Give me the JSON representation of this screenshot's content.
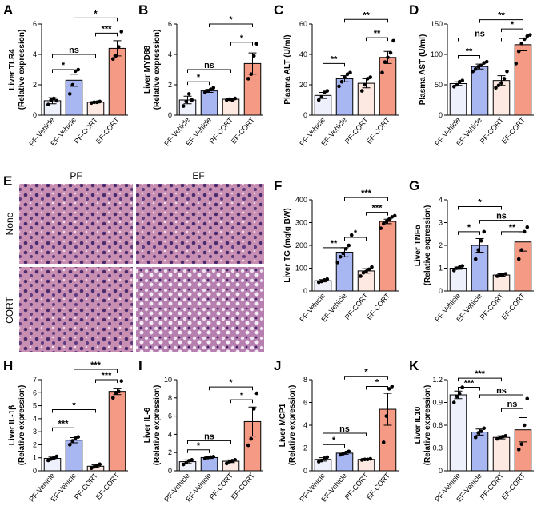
{
  "histology": {
    "label": "E",
    "columns": [
      "PF",
      "EF"
    ],
    "rows": [
      "None",
      "CORT"
    ]
  },
  "chart_data": [
    {
      "type": "bar",
      "label": "A",
      "ylabel": [
        "Liver TLR4",
        "(Relative expression)"
      ],
      "categories": [
        "PF-Vehicle",
        "EF-Vehicle",
        "PF-CORT",
        "EF-CORT"
      ],
      "colors": [
        "#eef0fb",
        "#a8b6f2",
        "#fde8e2",
        "#f59a84"
      ],
      "values": [
        0.95,
        2.3,
        0.85,
        4.4
      ],
      "errors": [
        0.2,
        0.4,
        0.05,
        0.5
      ],
      "points": [
        [
          0.7,
          1.0,
          1.1,
          0.95
        ],
        [
          1.4,
          2.0,
          2.9,
          3.0
        ],
        [
          0.8,
          0.85,
          0.85,
          0.9
        ],
        [
          3.7,
          3.9,
          4.5,
          5.5
        ]
      ],
      "ylim": [
        0,
        6
      ],
      "yticks": [
        0,
        2,
        4,
        6
      ],
      "brackets": [
        {
          "from": 0,
          "to": 1,
          "y": 3.0,
          "label": "*"
        },
        {
          "from": 0,
          "to": 2,
          "y": 4.0,
          "label": "ns"
        },
        {
          "from": 1,
          "to": 3,
          "y": 6.4,
          "label": "*"
        },
        {
          "from": 2,
          "to": 3,
          "y": 5.4,
          "label": "***"
        }
      ]
    },
    {
      "type": "bar",
      "label": "B",
      "ylabel": [
        "Liver MYD88",
        "(Relative expression)"
      ],
      "categories": [
        "PF-Vehicle",
        "EF-Vehicle",
        "PF-CORT",
        "EF-CORT"
      ],
      "colors": [
        "#eef0fb",
        "#a8b6f2",
        "#fde8e2",
        "#f59a84"
      ],
      "values": [
        1.0,
        1.6,
        1.05,
        3.4
      ],
      "errors": [
        0.25,
        0.1,
        0.05,
        0.7
      ],
      "points": [
        [
          0.6,
          0.9,
          1.4,
          1.0
        ],
        [
          1.5,
          1.6,
          1.7,
          1.8
        ],
        [
          1.0,
          1.05,
          1.0,
          1.1
        ],
        [
          2.4,
          2.7,
          3.9,
          4.7
        ]
      ],
      "ylim": [
        0,
        6
      ],
      "yticks": [
        0,
        2,
        4,
        6
      ],
      "brackets": [
        {
          "from": 0,
          "to": 1,
          "y": 2.2,
          "label": "*"
        },
        {
          "from": 0,
          "to": 2,
          "y": 3.0,
          "label": "ns"
        },
        {
          "from": 1,
          "to": 3,
          "y": 6.0,
          "label": "*"
        },
        {
          "from": 2,
          "to": 3,
          "y": 4.8,
          "label": "*"
        }
      ]
    },
    {
      "type": "bar",
      "label": "C",
      "ylabel": [
        "Plasma ALT (U/ml)"
      ],
      "categories": [
        "PF-Vehicle",
        "EF-Vehicle",
        "PF-CORT",
        "EF-CORT"
      ],
      "colors": [
        "#eef0fb",
        "#a8b6f2",
        "#fde8e2",
        "#f59a84"
      ],
      "values": [
        13,
        24,
        21,
        38
      ],
      "errors": [
        2,
        2,
        3,
        4
      ],
      "points": [
        [
          10,
          12,
          15,
          16
        ],
        [
          19,
          22,
          25,
          27,
          28
        ],
        [
          16,
          20,
          24,
          25
        ],
        [
          28,
          35,
          38,
          41,
          49
        ]
      ],
      "ylim": [
        0,
        60
      ],
      "yticks": [
        0,
        20,
        40,
        60
      ],
      "brackets": [
        {
          "from": 0,
          "to": 1,
          "y": 34,
          "label": "**"
        },
        {
          "from": 1,
          "to": 3,
          "y": 63,
          "label": "**"
        },
        {
          "from": 2,
          "to": 3,
          "y": 51,
          "label": "**"
        }
      ]
    },
    {
      "type": "bar",
      "label": "D",
      "ylabel": [
        "Plasma AST (U/ml)"
      ],
      "categories": [
        "PF-Vehicle",
        "EF-Vehicle",
        "PF-CORT",
        "EF-CORT"
      ],
      "colors": [
        "#eef0fb",
        "#a8b6f2",
        "#fde8e2",
        "#f59a84"
      ],
      "values": [
        52,
        80,
        57,
        116
      ],
      "errors": [
        3,
        4,
        8,
        10
      ],
      "points": [
        [
          47,
          50,
          55,
          57
        ],
        [
          72,
          76,
          80,
          82,
          86,
          88
        ],
        [
          45,
          49,
          53,
          60,
          72
        ],
        [
          85,
          105,
          118,
          125,
          130,
          132
        ]
      ],
      "ylim": [
        0,
        150
      ],
      "yticks": [
        0,
        50,
        100,
        150
      ],
      "brackets": [
        {
          "from": 0,
          "to": 1,
          "y": 98,
          "label": "**"
        },
        {
          "from": 0,
          "to": 2,
          "y": 127,
          "label": "ns"
        },
        {
          "from": 1,
          "to": 3,
          "y": 157,
          "label": "**"
        },
        {
          "from": 2,
          "to": 3,
          "y": 142,
          "label": "*"
        }
      ]
    },
    {
      "type": "bar",
      "label": "F",
      "ylabel": [
        "Liver TG (mg/g BW)"
      ],
      "categories": [
        "PF-Vehicle",
        "EF-Vehicle",
        "PF-CORT",
        "EF-CORT"
      ],
      "colors": [
        "#eef0fb",
        "#a8b6f2",
        "#fde8e2",
        "#f59a84"
      ],
      "values": [
        45,
        170,
        88,
        305
      ],
      "errors": [
        5,
        20,
        10,
        10
      ],
      "points": [
        [
          38,
          42,
          48,
          52
        ],
        [
          125,
          150,
          165,
          185,
          200,
          245
        ],
        [
          65,
          80,
          85,
          95,
          105
        ],
        [
          275,
          295,
          305,
          315,
          325,
          330
        ]
      ],
      "ylim": [
        0,
        400
      ],
      "yticks": [
        0,
        100,
        200,
        300,
        400
      ],
      "brackets": [
        {
          "from": 0,
          "to": 1,
          "y": 190,
          "label": "**"
        },
        {
          "from": 1,
          "to": 2,
          "y": 235,
          "label": "*"
        },
        {
          "from": 2,
          "to": 3,
          "y": 345,
          "label": "***"
        },
        {
          "from": 1,
          "to": 3,
          "y": 410,
          "label": "***"
        }
      ]
    },
    {
      "type": "bar",
      "label": "G",
      "ylabel": [
        "Liver TNFα",
        "(Relative expression)"
      ],
      "categories": [
        "PF-Vehicle",
        "EF-Vehicle",
        "PF-CORT",
        "EF-CORT"
      ],
      "colors": [
        "#eef0fb",
        "#a8b6f2",
        "#fde8e2",
        "#f59a84"
      ],
      "values": [
        1.0,
        2.0,
        0.7,
        2.15
      ],
      "errors": [
        0.05,
        0.3,
        0.05,
        0.4
      ],
      "points": [
        [
          0.9,
          1.0,
          1.05,
          1.1
        ],
        [
          1.4,
          1.8,
          2.2,
          2.6
        ],
        [
          0.65,
          0.7,
          0.72,
          0.75
        ],
        [
          1.4,
          1.8,
          2.6,
          2.8
        ]
      ],
      "ylim": [
        0,
        4
      ],
      "yticks": [
        0,
        1,
        2,
        3,
        4
      ],
      "brackets": [
        {
          "from": 0,
          "to": 1,
          "y": 2.6,
          "label": "*"
        },
        {
          "from": 0,
          "to": 2,
          "y": 3.7,
          "label": "*"
        },
        {
          "from": 1,
          "to": 3,
          "y": 3.1,
          "label": "ns"
        },
        {
          "from": 2,
          "to": 3,
          "y": 2.6,
          "label": "**"
        }
      ]
    },
    {
      "type": "bar",
      "label": "H",
      "ylabel": [
        "Liver IL-1β",
        "(Relative expression)"
      ],
      "categories": [
        "PF-Vehicle",
        "EF-Vehicle",
        "PF-CORT",
        "EF-CORT"
      ],
      "colors": [
        "#eef0fb",
        "#a8b6f2",
        "#fde8e2",
        "#f59a84"
      ],
      "values": [
        0.95,
        2.35,
        0.35,
        6.1
      ],
      "errors": [
        0.1,
        0.2,
        0.1,
        0.25
      ],
      "points": [
        [
          0.8,
          0.9,
          1.0,
          1.1
        ],
        [
          2.0,
          2.3,
          2.5,
          2.6
        ],
        [
          0.2,
          0.3,
          0.4,
          0.5
        ],
        [
          5.6,
          6.0,
          6.1,
          6.9
        ]
      ],
      "ylim": [
        0,
        7
      ],
      "yticks": [
        0,
        1,
        2,
        3,
        4,
        5,
        6,
        7
      ],
      "brackets": [
        {
          "from": 0,
          "to": 1,
          "y": 3.3,
          "label": "***"
        },
        {
          "from": 0,
          "to": 2,
          "y": 4.7,
          "label": "*"
        },
        {
          "from": 1,
          "to": 3,
          "y": 7.8,
          "label": "***"
        },
        {
          "from": 2,
          "to": 3,
          "y": 7.0,
          "label": "***"
        }
      ]
    },
    {
      "type": "bar",
      "label": "I",
      "ylabel": [
        "Liver IL-6",
        "(Relative expression)"
      ],
      "categories": [
        "PF-Vehicle",
        "EF-Vehicle",
        "PF-CORT",
        "EF-CORT"
      ],
      "colors": [
        "#eef0fb",
        "#a8b6f2",
        "#fde8e2",
        "#f59a84"
      ],
      "values": [
        1.0,
        1.45,
        1.05,
        5.4
      ],
      "errors": [
        0.2,
        0.1,
        0.15,
        1.6
      ],
      "points": [
        [
          0.7,
          0.9,
          1.1,
          1.2
        ],
        [
          1.35,
          1.45,
          1.5,
          1.55
        ],
        [
          0.8,
          1.0,
          1.1,
          1.2
        ],
        [
          2.8,
          3.5,
          6.8,
          8.5
        ]
      ],
      "ylim": [
        0,
        10
      ],
      "yticks": [
        0,
        2,
        4,
        6,
        8,
        10
      ],
      "brackets": [
        {
          "from": 0,
          "to": 1,
          "y": 2.3,
          "label": "*"
        },
        {
          "from": 0,
          "to": 2,
          "y": 3.3,
          "label": "ns"
        },
        {
          "from": 1,
          "to": 3,
          "y": 9.2,
          "label": "*"
        },
        {
          "from": 2,
          "to": 3,
          "y": 7.8,
          "label": "*"
        }
      ]
    },
    {
      "type": "bar",
      "label": "J",
      "ylabel": [
        "Liver MCP1",
        "(Relative expression)"
      ],
      "categories": [
        "PF-Vehicle",
        "EF-Vehicle",
        "PF-CORT",
        "EF-CORT"
      ],
      "colors": [
        "#eef0fb",
        "#a8b6f2",
        "#fde8e2",
        "#f59a84"
      ],
      "values": [
        1.0,
        1.55,
        1.0,
        5.4
      ],
      "errors": [
        0.15,
        0.1,
        0.05,
        1.4
      ],
      "points": [
        [
          0.8,
          0.9,
          1.1,
          1.2
        ],
        [
          1.4,
          1.5,
          1.6,
          1.7
        ],
        [
          0.95,
          1.0,
          1.0,
          1.05
        ],
        [
          2.5,
          4.8,
          7.2,
          7.4
        ]
      ],
      "ylim": [
        0,
        8
      ],
      "yticks": [
        0,
        2,
        4,
        6,
        8
      ],
      "brackets": [
        {
          "from": 0,
          "to": 1,
          "y": 2.3,
          "label": "*"
        },
        {
          "from": 0,
          "to": 2,
          "y": 3.3,
          "label": "ns"
        },
        {
          "from": 1,
          "to": 3,
          "y": 8.3,
          "label": "*"
        },
        {
          "from": 2,
          "to": 3,
          "y": 7.4,
          "label": "*"
        }
      ]
    },
    {
      "type": "bar",
      "label": "K",
      "ylabel": [
        "Liver IL10",
        "(Relative expression)"
      ],
      "categories": [
        "PF-Vehicle",
        "EF-Vehicle",
        "PF-CORT",
        "EF-CORT"
      ],
      "colors": [
        "#eef0fb",
        "#a8b6f2",
        "#fde8e2",
        "#f59a84"
      ],
      "values": [
        1.0,
        0.51,
        0.44,
        0.54
      ],
      "errors": [
        0.05,
        0.04,
        0.02,
        0.16
      ],
      "points": [
        [
          0.9,
          0.98,
          1.02,
          1.1
        ],
        [
          0.44,
          0.5,
          0.52,
          0.56
        ],
        [
          0.42,
          0.44,
          0.45,
          0.46
        ],
        [
          0.28,
          0.35,
          0.6,
          0.95
        ]
      ],
      "ylim": [
        0,
        1.2
      ],
      "yticks": [
        0,
        0.3,
        0.6,
        0.9,
        1.2
      ],
      "brackets": [
        {
          "from": 0,
          "to": 1,
          "y": 1.1,
          "label": "***"
        },
        {
          "from": 0,
          "to": 2,
          "y": 1.22,
          "label": "***"
        },
        {
          "from": 1,
          "to": 3,
          "y": 1.0,
          "label": "ns"
        },
        {
          "from": 2,
          "to": 3,
          "y": 0.82,
          "label": "ns"
        }
      ]
    }
  ]
}
